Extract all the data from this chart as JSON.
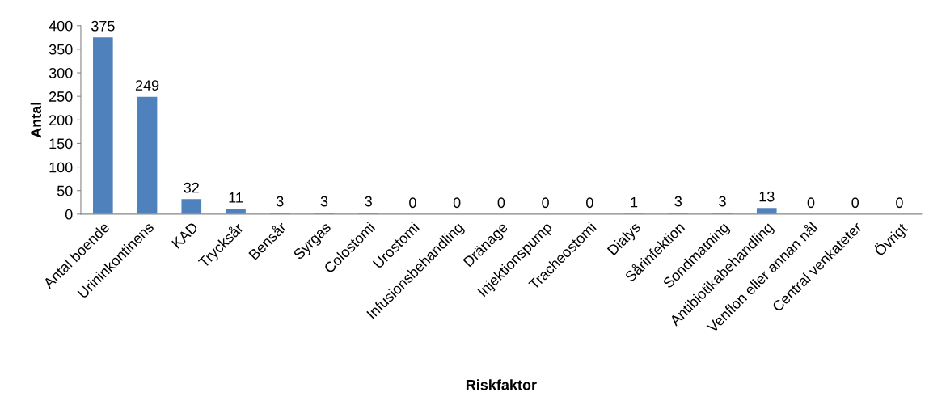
{
  "chart_data": {
    "type": "bar",
    "xlabel": "Riskfaktor",
    "ylabel": "Antal",
    "categories": [
      "Antal boende",
      "Urininkontinens",
      "KAD",
      "Trycksår",
      "Bensår",
      "Syrgas",
      "Colostomi",
      "Urostomi",
      "Infusionsbehandling",
      "Dränage",
      "Injektionspump",
      "Tracheostomi",
      "Dialys",
      "Sårinfektion",
      "Sondmatning",
      "Antibiotikabehandling",
      "Venflon eller annan nål",
      "Central venkateter",
      "Övrigt"
    ],
    "values": [
      375,
      249,
      32,
      11,
      3,
      3,
      3,
      0,
      0,
      0,
      0,
      0,
      1,
      3,
      3,
      13,
      0,
      0,
      0
    ],
    "color": "#4f81bd",
    "data_labels": true,
    "grid": false,
    "legend": false,
    "ylim": [
      0,
      400
    ],
    "yticks": [
      0,
      50,
      100,
      150,
      200,
      250,
      300,
      350,
      400
    ]
  }
}
